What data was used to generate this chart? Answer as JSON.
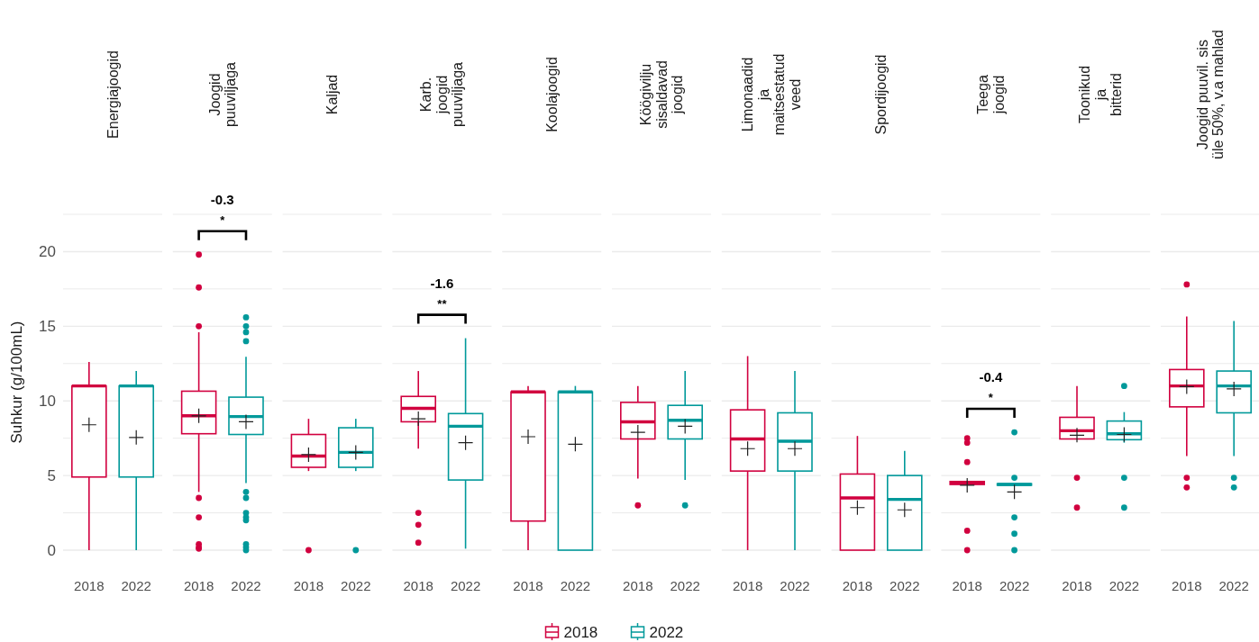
{
  "chart_data": [
    {
      "type": "box",
      "title": "Energiajoogid",
      "ylabel": "Suhkur (g/100mL)",
      "legend": "bottom",
      "categories": [
        "2018",
        "2022"
      ],
      "ylim": [
        0,
        22.5
      ],
      "yticks": [
        0,
        {
          "value": 2.5,
          "label": null
        },
        5,
        {
          "value": 7.5,
          "label": null
        },
        10,
        {
          "value": 12.5,
          "label": null
        },
        15,
        {
          "value": 17.5,
          "label": null
        },
        20,
        {
          "value": 22.5,
          "label": null
        }
      ],
      "grid": true,
      "series": [
        {
          "name": "2018",
          "color": "#d1003f",
          "boxes": [
            {
              "low": 0,
              "q1": 4.9,
              "median": 11.0,
              "q3": 11.0,
              "high": 12.6,
              "mean": 8.4
            },
            null
          ]
        },
        {
          "name": "2022",
          "color": "#00999a",
          "boxes": [
            null,
            {
              "low": 0,
              "q1": 4.9,
              "median": 11.0,
              "q3": 11.0,
              "high": 12.0,
              "mean": 7.55
            }
          ]
        }
      ]
    },
    {
      "type": "box",
      "title": "Joogid\npuuviljaga",
      "annotations": [
        "-0.3",
        "*"
      ],
      "tick_labels": "x",
      "categories": [
        "2018",
        "2022"
      ],
      "ylim": [
        0,
        22.5
      ],
      "yticks": [
        0,
        {
          "value": 2.5,
          "label": null
        },
        5,
        {
          "value": 7.5,
          "label": null
        },
        10,
        {
          "value": 12.5,
          "label": null
        },
        15,
        {
          "value": 17.5,
          "label": null
        },
        20,
        {
          "value": 22.5,
          "label": null
        }
      ],
      "grid": true,
      "series": [
        {
          "color": "#d1003f",
          "boxes": [
            {
              "low": 3.9,
              "q1": 7.8,
              "median": 9.0,
              "q3": 10.65,
              "high": 14.6,
              "mean": 9.0,
              "outliers": [
                19.8,
                17.6,
                15.0,
                3.5,
                2.2,
                0.4,
                0.2,
                0.1
              ]
            },
            null
          ]
        },
        {
          "color": "#00999a",
          "boxes": [
            null,
            {
              "low": 4.5,
              "q1": 7.75,
              "median": 8.95,
              "q3": 10.25,
              "high": 12.95,
              "mean": 8.6,
              "outliers": [
                15.6,
                15.0,
                14.6,
                14.0,
                3.9,
                3.5,
                2.5,
                2.2,
                2.0,
                0.4,
                0.2,
                0.0
              ]
            }
          ]
        }
      ]
    },
    {
      "type": "box",
      "title": "Kaljad",
      "tick_labels": "x",
      "categories": [
        "2018",
        "2022"
      ],
      "ylim": [
        0,
        22.5
      ],
      "yticks": [
        0,
        {
          "value": 2.5,
          "label": null
        },
        5,
        {
          "value": 7.5,
          "label": null
        },
        10,
        {
          "value": 12.5,
          "label": null
        },
        15,
        {
          "value": 17.5,
          "label": null
        },
        20,
        {
          "value": 22.5,
          "label": null
        }
      ],
      "grid": true,
      "series": [
        {
          "color": "#d1003f",
          "boxes": [
            {
              "low": 5.3,
              "q1": 5.55,
              "median": 6.3,
              "q3": 7.75,
              "high": 8.8,
              "mean": 6.4,
              "outliers": [
                0
              ]
            },
            null
          ]
        },
        {
          "color": "#00999a",
          "boxes": [
            null,
            {
              "low": 5.3,
              "q1": 5.55,
              "median": 6.55,
              "q3": 8.2,
              "high": 8.8,
              "mean": 6.55,
              "outliers": [
                0
              ]
            }
          ]
        }
      ]
    },
    {
      "type": "box",
      "title": "Karb.\njoogid\npuuviljaga",
      "annotations": [
        "-1.6",
        "**"
      ],
      "tick_labels": "x",
      "categories": [
        "2018",
        "2022"
      ],
      "ylim": [
        0,
        22.5
      ],
      "yticks": [
        0,
        {
          "value": 2.5,
          "label": null
        },
        5,
        {
          "value": 7.5,
          "label": null
        },
        10,
        {
          "value": 12.5,
          "label": null
        },
        15,
        {
          "value": 17.5,
          "label": null
        },
        20,
        {
          "value": 22.5,
          "label": null
        }
      ],
      "grid": true,
      "series": [
        {
          "color": "#d1003f",
          "boxes": [
            {
              "low": 6.8,
              "q1": 8.6,
              "median": 9.5,
              "q3": 10.3,
              "high": 12.0,
              "mean": 8.8,
              "outliers": [
                2.5,
                1.7,
                0.5
              ]
            },
            null
          ]
        },
        {
          "color": "#00999a",
          "boxes": [
            null,
            {
              "low": 0.1,
              "q1": 4.7,
              "median": 8.3,
              "q3": 9.15,
              "high": 14.2,
              "mean": 7.2
            }
          ]
        }
      ]
    },
    {
      "type": "box",
      "title": "Koolajoogid",
      "tick_labels": "x",
      "categories": [
        "2018",
        "2022"
      ],
      "ylim": [
        0,
        22.5
      ],
      "yticks": [
        0,
        {
          "value": 2.5,
          "label": null
        },
        5,
        {
          "value": 7.5,
          "label": null
        },
        10,
        {
          "value": 12.5,
          "label": null
        },
        15,
        {
          "value": 17.5,
          "label": null
        },
        20,
        {
          "value": 22.5,
          "label": null
        }
      ],
      "grid": true,
      "series": [
        {
          "color": "#d1003f",
          "boxes": [
            {
              "low": 0,
              "q1": 1.95,
              "median": 10.6,
              "q3": 10.6,
              "high": 11.0,
              "mean": 7.6
            },
            null
          ]
        },
        {
          "color": "#00999a",
          "boxes": [
            null,
            {
              "low": 0,
              "q1": 0,
              "median": 10.6,
              "q3": 10.6,
              "high": 11.0,
              "mean": 7.1
            }
          ]
        }
      ]
    },
    {
      "type": "box",
      "title": "Köögivilju\nsisaldavad\njoogid",
      "tick_labels": "x",
      "categories": [
        "2018",
        "2022"
      ],
      "ylim": [
        0,
        22.5
      ],
      "yticks": [
        0,
        {
          "value": 2.5,
          "label": null
        },
        5,
        {
          "value": 7.5,
          "label": null
        },
        10,
        {
          "value": 12.5,
          "label": null
        },
        15,
        {
          "value": 17.5,
          "label": null
        },
        20,
        {
          "value": 22.5,
          "label": null
        }
      ],
      "grid": true,
      "series": [
        {
          "color": "#d1003f",
          "boxes": [
            {
              "low": 4.8,
              "q1": 7.45,
              "median": 8.6,
              "q3": 9.9,
              "high": 11.0,
              "mean": 7.9,
              "outliers": [
                3.0
              ]
            },
            null
          ]
        },
        {
          "color": "#00999a",
          "boxes": [
            null,
            {
              "low": 4.7,
              "q1": 7.45,
              "median": 8.7,
              "q3": 9.7,
              "high": 12.0,
              "mean": 8.3,
              "outliers": [
                3.0
              ]
            }
          ]
        }
      ]
    },
    {
      "type": "box",
      "title": "Limonaadid\nja\nmaitsestatud\nveed",
      "tick_labels": "x",
      "categories": [
        "2018",
        "2022"
      ],
      "ylim": [
        0,
        22.5
      ],
      "yticks": [
        0,
        {
          "value": 2.5,
          "label": null
        },
        5,
        {
          "value": 7.5,
          "label": null
        },
        10,
        {
          "value": 12.5,
          "label": null
        },
        15,
        {
          "value": 17.5,
          "label": null
        },
        20,
        {
          "value": 22.5,
          "label": null
        }
      ],
      "grid": true,
      "series": [
        {
          "color": "#d1003f",
          "boxes": [
            {
              "low": 0,
              "q1": 5.3,
              "median": 7.45,
              "q3": 9.4,
              "high": 13.0,
              "mean": 6.8
            },
            null
          ]
        },
        {
          "color": "#00999a",
          "boxes": [
            null,
            {
              "low": 0,
              "q1": 5.3,
              "median": 7.3,
              "q3": 9.2,
              "high": 12.0,
              "mean": 6.8
            }
          ]
        }
      ]
    },
    {
      "type": "box",
      "title": "Spordijoogid",
      "tick_labels": "x",
      "categories": [
        "2018",
        "2022"
      ],
      "ylim": [
        0,
        22.5
      ],
      "yticks": [
        0,
        {
          "value": 2.5,
          "label": null
        },
        5,
        {
          "value": 7.5,
          "label": null
        },
        10,
        {
          "value": 12.5,
          "label": null
        },
        15,
        {
          "value": 17.5,
          "label": null
        },
        20,
        {
          "value": 22.5,
          "label": null
        }
      ],
      "grid": true,
      "series": [
        {
          "color": "#d1003f",
          "boxes": [
            {
              "low": 0,
              "q1": 0,
              "median": 3.5,
              "q3": 5.1,
              "high": 7.65,
              "mean": 2.85
            },
            null
          ]
        },
        {
          "color": "#00999a",
          "boxes": [
            null,
            {
              "low": 0,
              "q1": 0,
              "median": 3.4,
              "q3": 5.0,
              "high": 6.65,
              "mean": 2.7
            }
          ]
        }
      ]
    },
    {
      "type": "box",
      "title": "Teega\njoogid",
      "annotations": [
        "-0.4",
        "*"
      ],
      "tick_labels": "x",
      "categories": [
        "2018",
        "2022"
      ],
      "ylim": [
        0,
        22.5
      ],
      "yticks": [
        0,
        {
          "value": 2.5,
          "label": null
        },
        5,
        {
          "value": 7.5,
          "label": null
        },
        10,
        {
          "value": 12.5,
          "label": null
        },
        15,
        {
          "value": 17.5,
          "label": null
        },
        20,
        {
          "value": 22.5,
          "label": null
        }
      ],
      "grid": true,
      "series": [
        {
          "color": "#d1003f",
          "boxes": [
            {
              "low": 4.4,
              "q1": 4.4,
              "median": 4.5,
              "q3": 4.6,
              "high": 4.6,
              "mean": 4.35,
              "outliers": [
                7.5,
                7.2,
                5.9,
                1.3,
                0
              ]
            },
            null
          ]
        },
        {
          "color": "#00999a",
          "boxes": [
            null,
            {
              "low": 4.35,
              "q1": 4.35,
              "median": 4.4,
              "q3": 4.45,
              "high": 4.45,
              "mean": 3.9,
              "outliers": [
                7.9,
                4.85,
                2.2,
                1.1,
                0
              ]
            }
          ]
        }
      ]
    },
    {
      "type": "box",
      "title": "Toonikud\nja\nbitterid",
      "tick_labels": "x",
      "categories": [
        "2018",
        "2022"
      ],
      "ylim": [
        0,
        22.5
      ],
      "yticks": [
        0,
        {
          "value": 2.5,
          "label": null
        },
        5,
        {
          "value": 7.5,
          "label": null
        },
        10,
        {
          "value": 12.5,
          "label": null
        },
        15,
        {
          "value": 17.5,
          "label": null
        },
        20,
        {
          "value": 22.5,
          "label": null
        }
      ],
      "grid": true,
      "series": [
        {
          "color": "#d1003f",
          "boxes": [
            {
              "low": 7.45,
              "q1": 7.45,
              "median": 8.0,
              "q3": 8.9,
              "high": 11.0,
              "mean": 7.7,
              "outliers": [
                4.85,
                2.85
              ]
            },
            null
          ]
        },
        {
          "color": "#00999a",
          "boxes": [
            null,
            {
              "low": 7.2,
              "q1": 7.4,
              "median": 7.8,
              "q3": 8.65,
              "high": 9.25,
              "mean": 7.75,
              "outliers": [
                11.0,
                4.85,
                2.85
              ]
            }
          ]
        }
      ]
    },
    {
      "type": "box",
      "title": "Joogid puuvil. sis\nüle 50%, v.a mahlad",
      "tick_labels": "x",
      "categories": [
        "2018",
        "2022"
      ],
      "ylim": [
        0,
        22.5
      ],
      "yticks": [
        0,
        {
          "value": 2.5,
          "label": null
        },
        5,
        {
          "value": 7.5,
          "label": null
        },
        10,
        {
          "value": 12.5,
          "label": null
        },
        15,
        {
          "value": 17.5,
          "label": null
        },
        20,
        {
          "value": 22.5,
          "label": null
        }
      ],
      "grid": true,
      "series": [
        {
          "color": "#d1003f",
          "boxes": [
            {
              "low": 6.3,
              "q1": 9.6,
              "median": 11.0,
              "q3": 12.1,
              "high": 15.65,
              "mean": 10.95,
              "outliers": [
                17.8,
                4.85,
                4.2
              ]
            },
            null
          ]
        },
        {
          "color": "#00999a",
          "boxes": [
            null,
            {
              "low": 6.3,
              "q1": 9.2,
              "median": 11.0,
              "q3": 12.0,
              "high": 15.35,
              "mean": 10.8,
              "outliers": [
                4.85,
                4.2
              ]
            }
          ]
        }
      ]
    }
  ]
}
